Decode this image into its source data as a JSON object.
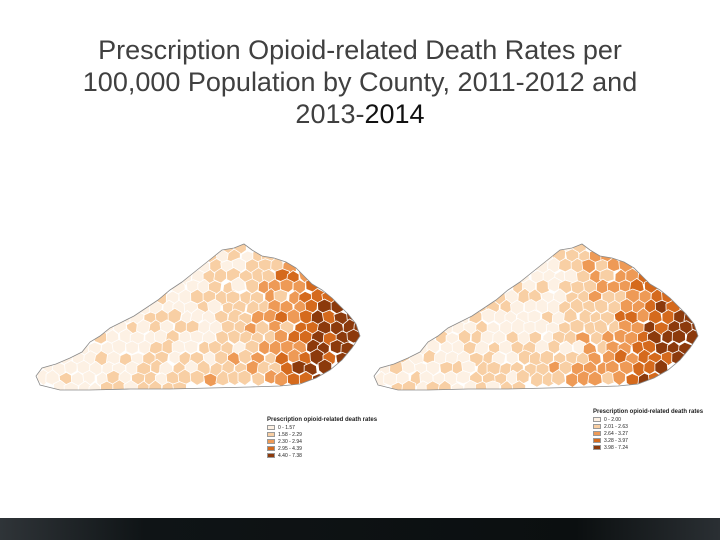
{
  "title": {
    "line1": "Prescription Opioid-related Death Rates per",
    "line2": "100,000 Population by County, 2011-2012 and",
    "line3a": "2013-",
    "line3b": "2014"
  },
  "maps": [
    {
      "legend_title": "Prescription opioid-related death rates",
      "classes": [
        {
          "label": "0 - 1.57",
          "color": "#fdf1e4"
        },
        {
          "label": "1.58 - 2.29",
          "color": "#f8cfa4"
        },
        {
          "label": "2.30 - 2.94",
          "color": "#ee9a56"
        },
        {
          "label": "2.95 - 4.39",
          "color": "#d56a1d"
        },
        {
          "label": "4.40 - 7.38",
          "color": "#8c3a0c"
        }
      ]
    },
    {
      "legend_title": "Prescription opioid-related death rates",
      "classes": [
        {
          "label": "0 - 2.00",
          "color": "#fdf1e4"
        },
        {
          "label": "2.01 - 2.63",
          "color": "#f8cfa4"
        },
        {
          "label": "2.64 - 3.27",
          "color": "#ee9a56"
        },
        {
          "label": "3.28 - 3.97",
          "color": "#d56a1d"
        },
        {
          "label": "3.98 - 7.24",
          "color": "#8c3a0c"
        }
      ]
    }
  ]
}
